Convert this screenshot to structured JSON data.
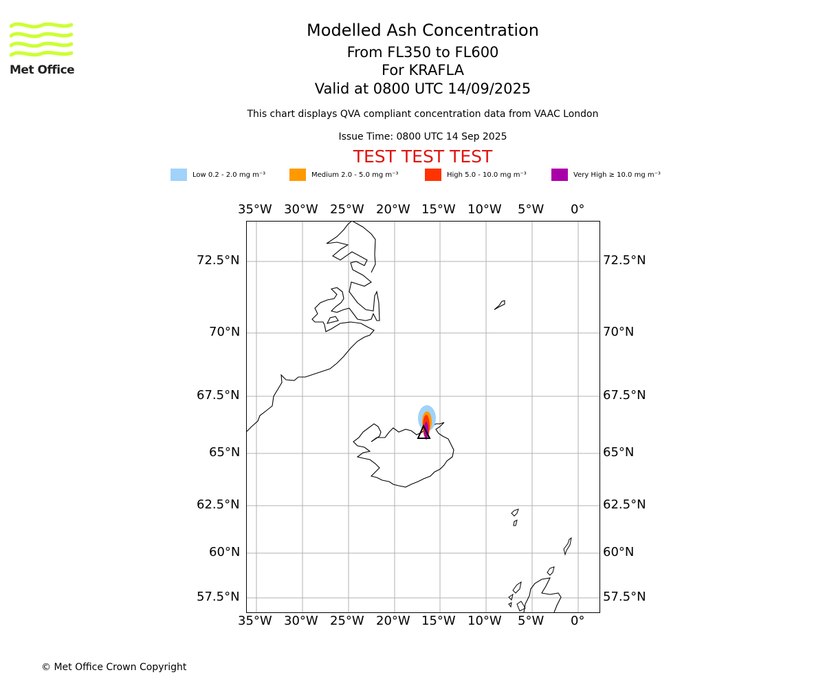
{
  "logo": {
    "text": "Met Office",
    "wave_color": "#ccff33"
  },
  "header": {
    "title": "Modelled Ash Concentration",
    "flight_levels": "From FL350 to FL600",
    "volcano": "For KRAFLA",
    "valid": "Valid at 0800 UTC 14/09/2025",
    "subtitle": "This chart displays QVA compliant concentration data from VAAC London",
    "issue_time": "Issue Time: 0800 UTC 14 Sep 2025",
    "test_banner": "TEST TEST TEST",
    "test_color": "#e0140f"
  },
  "legend": [
    {
      "label": "Low 0.2 - 2.0 mg m⁻³",
      "color": "#a0d2fa"
    },
    {
      "label": "Medium 2.0 - 5.0 mg m⁻³",
      "color": "#ff9900"
    },
    {
      "label": "High 5.0 - 10.0 mg m⁻³",
      "color": "#ff3300"
    },
    {
      "label": "Very High ≥ 10.0 mg m⁻³",
      "color": "#aa00aa"
    }
  ],
  "map": {
    "lon_ticks": [
      "35°W",
      "30°W",
      "25°W",
      "20°W",
      "15°W",
      "10°W",
      "5°W",
      "0°"
    ],
    "lat_ticks": [
      "72.5°N",
      "70°N",
      "67.5°N",
      "65°N",
      "62.5°N",
      "60°N",
      "57.5°N"
    ],
    "grid_color": "#b0b0b0",
    "volcano_marker": "triangle",
    "volcano_name": "KRAFLA"
  },
  "footer": {
    "copyright": "© Met Office Crown Copyright"
  }
}
